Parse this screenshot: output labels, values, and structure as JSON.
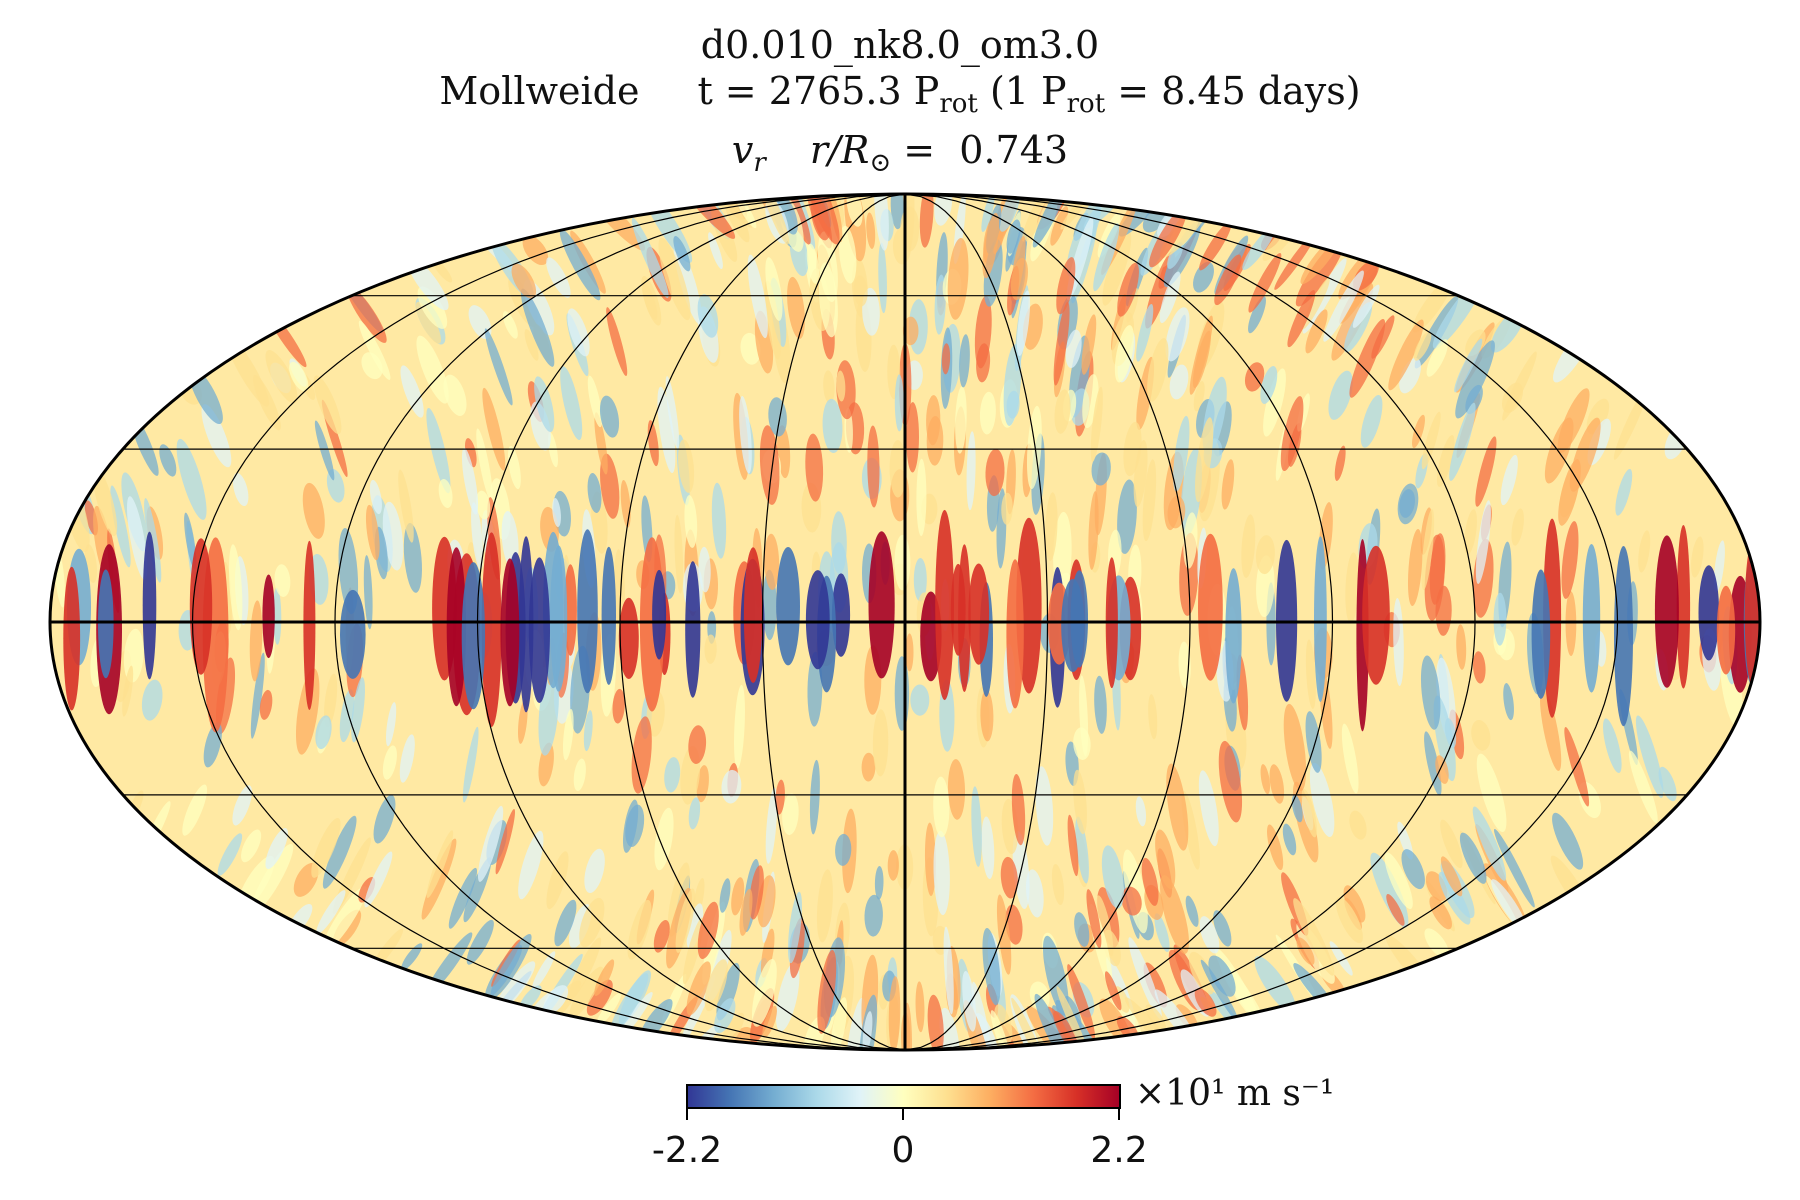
{
  "title": {
    "run_name": "d0.010_nk8.0_om3.0",
    "projection": "Mollweide",
    "time_prefix": "t = 2765.3 P",
    "time_sub": "rot",
    "time_mid": " (1 P",
    "time_sub2": "rot",
    "time_suffix": " = 8.45 days)",
    "variable": "v",
    "variable_sub": "r",
    "radius_label": "r/R",
    "radius_value": "=  0.743"
  },
  "colorbar": {
    "min_label": "-2.2",
    "mid_label": "0",
    "max_label": "2.2",
    "unit": "×10¹ m s⁻¹",
    "range": [
      -2.2,
      2.2
    ],
    "colormap": "RdYlBu_r",
    "stops": [
      "#313695",
      "#4575b4",
      "#74add1",
      "#abd9e9",
      "#e0f3f8",
      "#ffffbf",
      "#fee090",
      "#fdae61",
      "#f46d43",
      "#d73027",
      "#a50026"
    ]
  },
  "chart_data": {
    "type": "heatmap",
    "projection": "Mollweide",
    "quantity": "v_r",
    "grid": true,
    "meridian_spacing_deg": 30,
    "parallels_deg": [
      -60,
      -30,
      0,
      30,
      60
    ],
    "value_range": [
      -2.2,
      2.2
    ]
  }
}
